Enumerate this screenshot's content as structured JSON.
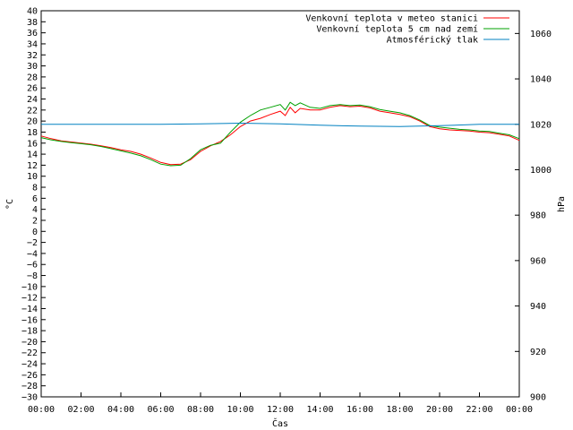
{
  "chart_data": {
    "type": "line",
    "xlabel": "Čas",
    "ylabel": "°C",
    "y2label": "hPa",
    "xlim": [
      0,
      24
    ],
    "ylim": [
      -30,
      40
    ],
    "y2lim": [
      900,
      1070
    ],
    "x_tick_labels": [
      "00:00",
      "02:00",
      "04:00",
      "06:00",
      "08:00",
      "10:00",
      "12:00",
      "14:00",
      "16:00",
      "18:00",
      "20:00",
      "22:00",
      "00:00"
    ],
    "y_ticks": [
      40,
      38,
      36,
      34,
      32,
      30,
      28,
      26,
      24,
      22,
      20,
      18,
      16,
      14,
      12,
      10,
      8,
      6,
      4,
      2,
      0,
      -2,
      -4,
      -6,
      -8,
      -10,
      -12,
      -14,
      -16,
      -18,
      -20,
      -22,
      -24,
      -26,
      -28,
      -30
    ],
    "y_tick_labels": [
      "40",
      "38",
      "36",
      "34",
      "32",
      "30",
      "28",
      "26",
      "24",
      "22",
      "20",
      "18",
      "16",
      "14",
      "12",
      "10",
      "8",
      "6",
      "4",
      "2",
      "0",
      "−2",
      "−4",
      "−6",
      "−8",
      "−10",
      "−12",
      "−14",
      "−16",
      "−18",
      "−20",
      "−22",
      "−24",
      "−26",
      "−28",
      "−30"
    ],
    "y2_ticks": [
      1060,
      1040,
      1020,
      1000,
      980,
      960,
      940,
      920,
      900
    ],
    "y2_tick_labels": [
      "1060",
      "1040",
      "1020",
      "1000",
      "980",
      "960",
      "940",
      "920",
      "900"
    ],
    "legend_position": "top-right",
    "grid": false,
    "series": [
      {
        "name": "Venkovní teplota v meteo stanici",
        "color": "#ff0000",
        "axis": "left",
        "x": [
          0,
          0.5,
          1,
          1.5,
          2,
          2.5,
          3,
          3.5,
          4,
          4.5,
          5,
          5.5,
          6,
          6.5,
          7,
          7.5,
          8,
          8.5,
          9,
          9.5,
          10,
          10.5,
          11,
          11.5,
          12,
          12.25,
          12.5,
          12.75,
          13,
          13.5,
          14,
          14.5,
          15,
          15.5,
          16,
          16.5,
          17,
          17.5,
          18,
          18.5,
          19,
          19.5,
          20,
          20.5,
          21,
          21.5,
          22,
          22.5,
          23,
          23.5,
          24
        ],
        "values": [
          17.3,
          16.8,
          16.4,
          16.2,
          16.0,
          15.8,
          15.5,
          15.2,
          14.8,
          14.5,
          14.0,
          13.3,
          12.5,
          12.1,
          12.2,
          13.0,
          14.5,
          15.5,
          16.3,
          17.5,
          19.0,
          20.0,
          20.5,
          21.2,
          21.8,
          21.0,
          22.5,
          21.5,
          22.3,
          22.0,
          22.0,
          22.5,
          22.8,
          22.6,
          22.7,
          22.4,
          21.8,
          21.5,
          21.2,
          20.8,
          20.0,
          19.0,
          18.6,
          18.4,
          18.3,
          18.2,
          18.0,
          17.9,
          17.6,
          17.3,
          16.5
        ]
      },
      {
        "name": "Venkovní teplota 5 cm nad zemí",
        "color": "#00a000",
        "axis": "left",
        "x": [
          0,
          0.5,
          1,
          1.5,
          2,
          2.5,
          3,
          3.5,
          4,
          4.5,
          5,
          5.5,
          6,
          6.5,
          7,
          7.5,
          8,
          8.5,
          9,
          9.5,
          10,
          10.5,
          11,
          11.5,
          12,
          12.25,
          12.5,
          12.75,
          13,
          13.5,
          14,
          14.5,
          15,
          15.5,
          16,
          16.5,
          17,
          17.5,
          18,
          18.5,
          19,
          19.5,
          20,
          20.5,
          21,
          21.5,
          22,
          22.5,
          23,
          23.5,
          24
        ],
        "values": [
          17.0,
          16.6,
          16.3,
          16.1,
          15.9,
          15.7,
          15.4,
          15.0,
          14.6,
          14.2,
          13.7,
          13.0,
          12.2,
          11.9,
          12.0,
          13.2,
          14.8,
          15.6,
          16.0,
          18.0,
          19.8,
          21.0,
          22.0,
          22.5,
          23.0,
          22.0,
          23.4,
          22.8,
          23.3,
          22.5,
          22.3,
          22.8,
          23.0,
          22.8,
          22.9,
          22.6,
          22.1,
          21.8,
          21.5,
          21.0,
          20.2,
          19.2,
          18.9,
          18.7,
          18.5,
          18.4,
          18.2,
          18.1,
          17.8,
          17.5,
          16.8
        ]
      },
      {
        "name": "Atmosférický tlak",
        "color": "#0080c0",
        "axis": "right",
        "x": [
          0,
          2,
          4,
          6,
          8,
          10,
          12,
          14,
          16,
          18,
          20,
          22,
          24
        ],
        "values": [
          1020.0,
          1020.0,
          1020.0,
          1020.0,
          1020.2,
          1020.5,
          1020.2,
          1019.6,
          1019.2,
          1019.0,
          1019.4,
          1020.0,
          1020.0
        ]
      }
    ]
  }
}
